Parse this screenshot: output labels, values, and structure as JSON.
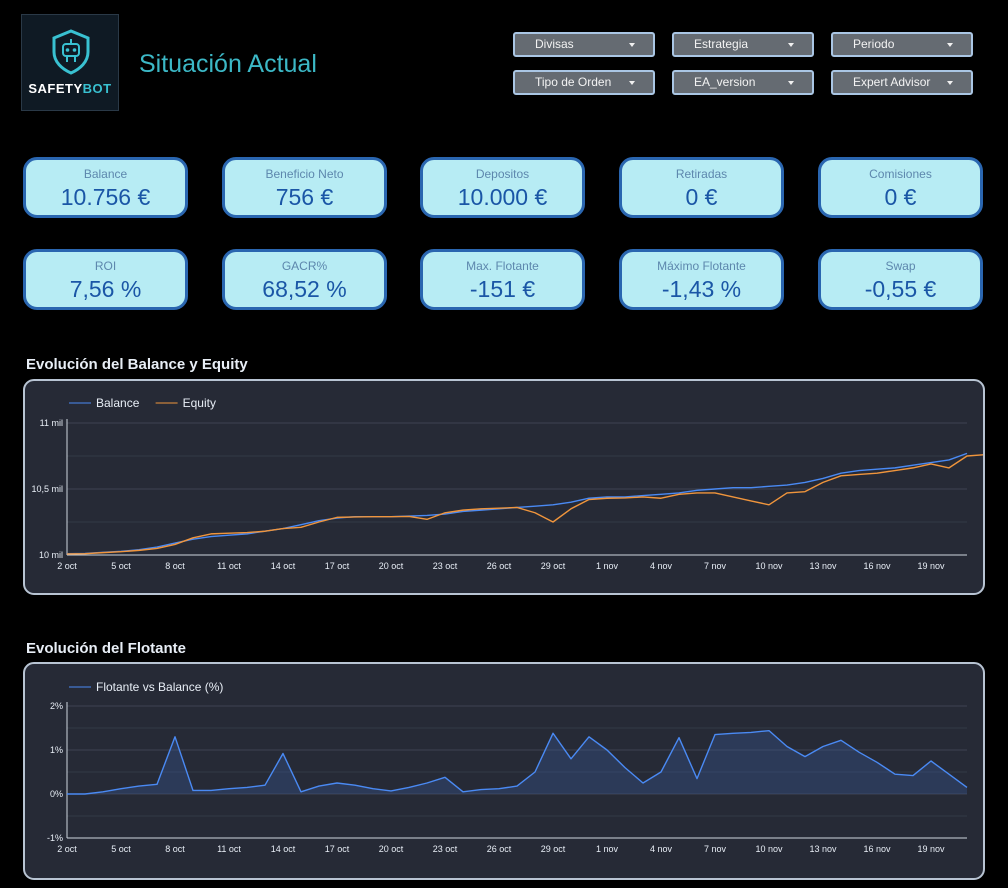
{
  "app": {
    "brand_name": "SAFETY",
    "brand_accent": "BOT",
    "title": "Situación Actual",
    "accent_color": "#3cb8c6"
  },
  "filters": [
    {
      "label": "Divisas"
    },
    {
      "label": "Estrategia"
    },
    {
      "label": "Periodo"
    },
    {
      "label": "Tipo de Orden"
    },
    {
      "label": "EA_version"
    },
    {
      "label": "Expert Advisor"
    }
  ],
  "kpis": [
    {
      "label": "Balance",
      "value": "10.756 €"
    },
    {
      "label": "Beneficio Neto",
      "value": "756 €"
    },
    {
      "label": "Depositos",
      "value": "10.000 €"
    },
    {
      "label": "Retiradas",
      "value": "0 €"
    },
    {
      "label": "Comisiones",
      "value": "0 €"
    },
    {
      "label": "ROI",
      "value": "7,56 %"
    },
    {
      "label": "GACR%",
      "value": "68,52 %"
    },
    {
      "label": "Max. Flotante",
      "value": "-151 €"
    },
    {
      "label": "Máximo Flotante",
      "value": "-1,43 %"
    },
    {
      "label": "Swap",
      "value": "-0,55 €"
    }
  ],
  "chart_data": [
    {
      "type": "line",
      "title": "Evolución del Balance y Equity",
      "xlabel": "",
      "ylabel": "",
      "ylim": [
        10000,
        11000
      ],
      "y_ticks": [
        {
          "value": 10000,
          "label": "10 mil"
        },
        {
          "value": 10500,
          "label": "10,5 mil"
        },
        {
          "value": 11000,
          "label": "11 mil"
        }
      ],
      "x_day_range": [
        0,
        50
      ],
      "x_ticks": [
        {
          "day": 0,
          "label": "2 oct"
        },
        {
          "day": 3,
          "label": "5 oct"
        },
        {
          "day": 6,
          "label": "8 oct"
        },
        {
          "day": 9,
          "label": "11 oct"
        },
        {
          "day": 12,
          "label": "14 oct"
        },
        {
          "day": 15,
          "label": "17 oct"
        },
        {
          "day": 18,
          "label": "20 oct"
        },
        {
          "day": 21,
          "label": "23 oct"
        },
        {
          "day": 24,
          "label": "26 oct"
        },
        {
          "day": 27,
          "label": "29 oct"
        },
        {
          "day": 30,
          "label": "1 nov"
        },
        {
          "day": 33,
          "label": "4 nov"
        },
        {
          "day": 36,
          "label": "7 nov"
        },
        {
          "day": 39,
          "label": "10 nov"
        },
        {
          "day": 42,
          "label": "13 nov"
        },
        {
          "day": 45,
          "label": "16 nov"
        },
        {
          "day": 48,
          "label": "19 nov"
        }
      ],
      "legend_position": "top-left",
      "series": [
        {
          "name": "Balance",
          "color": "#4a8af4",
          "points": [
            [
              0,
              10010
            ],
            [
              1,
              10012
            ],
            [
              2,
              10020
            ],
            [
              3,
              10028
            ],
            [
              4,
              10040
            ],
            [
              5,
              10060
            ],
            [
              6,
              10090
            ],
            [
              7,
              10120
            ],
            [
              8,
              10140
            ],
            [
              9,
              10150
            ],
            [
              10,
              10160
            ],
            [
              11,
              10180
            ],
            [
              12,
              10200
            ],
            [
              13,
              10230
            ],
            [
              14,
              10260
            ],
            [
              15,
              10280
            ],
            [
              16,
              10290
            ],
            [
              17,
              10290
            ],
            [
              18,
              10290
            ],
            [
              19,
              10295
            ],
            [
              20,
              10300
            ],
            [
              21,
              10310
            ],
            [
              22,
              10330
            ],
            [
              23,
              10340
            ],
            [
              24,
              10350
            ],
            [
              25,
              10360
            ],
            [
              26,
              10370
            ],
            [
              27,
              10380
            ],
            [
              28,
              10400
            ],
            [
              29,
              10430
            ],
            [
              30,
              10440
            ],
            [
              31,
              10440
            ],
            [
              32,
              10450
            ],
            [
              33,
              10460
            ],
            [
              34,
              10470
            ],
            [
              35,
              10490
            ],
            [
              36,
              10500
            ],
            [
              37,
              10510
            ],
            [
              38,
              10510
            ],
            [
              39,
              10520
            ],
            [
              40,
              10530
            ],
            [
              41,
              10550
            ],
            [
              42,
              10580
            ],
            [
              43,
              10620
            ],
            [
              44,
              10640
            ],
            [
              45,
              10650
            ],
            [
              46,
              10660
            ],
            [
              47,
              10680
            ],
            [
              48,
              10700
            ],
            [
              49,
              10720
            ],
            [
              50,
              10770
            ]
          ]
        },
        {
          "name": "Equity",
          "color": "#f0953c",
          "points": [
            [
              0,
              10008
            ],
            [
              1,
              10010
            ],
            [
              2,
              10018
            ],
            [
              3,
              10025
            ],
            [
              4,
              10035
            ],
            [
              5,
              10050
            ],
            [
              6,
              10080
            ],
            [
              7,
              10130
            ],
            [
              8,
              10160
            ],
            [
              9,
              10165
            ],
            [
              10,
              10170
            ],
            [
              11,
              10180
            ],
            [
              12,
              10200
            ],
            [
              13,
              10210
            ],
            [
              14,
              10250
            ],
            [
              15,
              10285
            ],
            [
              16,
              10288
            ],
            [
              17,
              10290
            ],
            [
              18,
              10290
            ],
            [
              19,
              10292
            ],
            [
              20,
              10270
            ],
            [
              21,
              10320
            ],
            [
              22,
              10340
            ],
            [
              23,
              10350
            ],
            [
              24,
              10355
            ],
            [
              25,
              10360
            ],
            [
              26,
              10320
            ],
            [
              27,
              10250
            ],
            [
              28,
              10350
            ],
            [
              29,
              10420
            ],
            [
              30,
              10430
            ],
            [
              31,
              10432
            ],
            [
              32,
              10440
            ],
            [
              33,
              10430
            ],
            [
              34,
              10460
            ],
            [
              35,
              10470
            ],
            [
              36,
              10470
            ],
            [
              37,
              10440
            ],
            [
              38,
              10410
            ],
            [
              39,
              10380
            ],
            [
              40,
              10470
            ],
            [
              41,
              10480
            ],
            [
              42,
              10550
            ],
            [
              43,
              10600
            ],
            [
              44,
              10610
            ],
            [
              45,
              10620
            ],
            [
              46,
              10640
            ],
            [
              47,
              10660
            ],
            [
              48,
              10690
            ],
            [
              49,
              10660
            ],
            [
              50,
              10750
            ],
            [
              51,
              10760
            ]
          ]
        }
      ]
    },
    {
      "type": "area",
      "title": "Evolución del Flotante",
      "xlabel": "",
      "ylabel": "",
      "ylim": [
        -1,
        2
      ],
      "y_ticks": [
        {
          "value": 2,
          "label": "2%"
        },
        {
          "value": 1,
          "label": "1%"
        },
        {
          "value": 0,
          "label": "0%"
        },
        {
          "value": -1,
          "label": "-1%"
        }
      ],
      "x_day_range": [
        0,
        50
      ],
      "x_ticks": [
        {
          "day": 0,
          "label": "2 oct"
        },
        {
          "day": 3,
          "label": "5 oct"
        },
        {
          "day": 6,
          "label": "8 oct"
        },
        {
          "day": 9,
          "label": "11 oct"
        },
        {
          "day": 12,
          "label": "14 oct"
        },
        {
          "day": 15,
          "label": "17 oct"
        },
        {
          "day": 18,
          "label": "20 oct"
        },
        {
          "day": 21,
          "label": "23 oct"
        },
        {
          "day": 24,
          "label": "26 oct"
        },
        {
          "day": 27,
          "label": "29 oct"
        },
        {
          "day": 30,
          "label": "1 nov"
        },
        {
          "day": 33,
          "label": "4 nov"
        },
        {
          "day": 36,
          "label": "7 nov"
        },
        {
          "day": 39,
          "label": "10 nov"
        },
        {
          "day": 42,
          "label": "13 nov"
        },
        {
          "day": 45,
          "label": "16 nov"
        },
        {
          "day": 48,
          "label": "19 nov"
        }
      ],
      "legend_position": "top-left",
      "series": [
        {
          "name": "Flotante vs Balance (%)",
          "color": "#4a8af4",
          "points": [
            [
              0,
              0.0
            ],
            [
              1,
              0.0
            ],
            [
              2,
              0.05
            ],
            [
              3,
              0.12
            ],
            [
              4,
              0.18
            ],
            [
              5,
              0.22
            ],
            [
              6,
              1.3
            ],
            [
              7,
              0.08
            ],
            [
              8,
              0.08
            ],
            [
              9,
              0.12
            ],
            [
              10,
              0.15
            ],
            [
              11,
              0.2
            ],
            [
              12,
              0.92
            ],
            [
              13,
              0.05
            ],
            [
              14,
              0.18
            ],
            [
              15,
              0.25
            ],
            [
              16,
              0.2
            ],
            [
              17,
              0.12
            ],
            [
              18,
              0.07
            ],
            [
              19,
              0.15
            ],
            [
              20,
              0.25
            ],
            [
              21,
              0.38
            ],
            [
              22,
              0.05
            ],
            [
              23,
              0.1
            ],
            [
              24,
              0.12
            ],
            [
              25,
              0.18
            ],
            [
              26,
              0.5
            ],
            [
              27,
              1.38
            ],
            [
              28,
              0.8
            ],
            [
              29,
              1.3
            ],
            [
              30,
              1.0
            ],
            [
              31,
              0.6
            ],
            [
              32,
              0.25
            ],
            [
              33,
              0.5
            ],
            [
              34,
              1.28
            ],
            [
              35,
              0.35
            ],
            [
              36,
              1.35
            ],
            [
              37,
              1.38
            ],
            [
              38,
              1.4
            ],
            [
              39,
              1.44
            ],
            [
              40,
              1.08
            ],
            [
              41,
              0.85
            ],
            [
              42,
              1.08
            ],
            [
              43,
              1.22
            ],
            [
              44,
              0.95
            ],
            [
              45,
              0.72
            ],
            [
              46,
              0.45
            ],
            [
              47,
              0.42
            ],
            [
              48,
              0.75
            ],
            [
              49,
              0.45
            ],
            [
              50,
              0.15
            ]
          ]
        }
      ]
    }
  ]
}
